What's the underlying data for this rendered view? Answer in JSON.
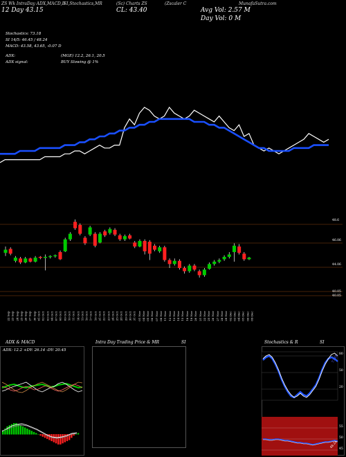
{
  "header": {
    "top_line": "ZS Wk IntraDay ADX,MACD,B  SI,Stochastics,MR  (Sc) Charts ZS  (Zscaler C)  MunafaSutra.com",
    "top_line_left": "ZS Wk IntraDay ADX,MACD,B",
    "top_line_mid1": "SI,Stochastics,MR",
    "top_line_mid2": "(Sc) Charts ZS",
    "top_line_right": "(Zscaler C",
    "top_line_far": "MunafaSutra.com",
    "date_line": "12 Day 43.15",
    "close_label": "CL: 43.40",
    "avg_vol": "Avg Vol: 2.57  M",
    "day_vol": "Day Vol: 0   M"
  },
  "indicators": {
    "stochastics": "Stochastics: 73.18",
    "si": "SI 14/5: 46.45 / 48.24",
    "macd": "MACD: 43.58, 43.65, -0.07 D",
    "adx": "ADX:",
    "adx_values": "(MGE) 12.2, 26.1, 20.5",
    "adx_signal": "ADX  signal:",
    "buy_signal": "BUY Slowing @ 1%"
  },
  "price_levels": [
    "48.6",
    "46.06",
    "44.06",
    "40.05",
    "40.05"
  ],
  "x_dates": [
    "22 Sep",
    "23 Sep",
    "24 Sep",
    "25 Sep",
    "26 Sep",
    "27 Sep",
    "30 Sep",
    "01 Oct",
    "02 Oct",
    "03 Oct",
    "04 Oct",
    "07 Oct",
    "08 Oct",
    "09 Oct",
    "10 Oct",
    "11 Oct",
    "14 Oct",
    "15 Oct",
    "16 Oct",
    "17 Oct",
    "18 Oct",
    "21 Oct",
    "22 Oct",
    "23 Oct",
    "24 Oct",
    "25 Oct",
    "28 Oct",
    "29 Oct",
    "30 Oct",
    "31 Oct",
    "01 Nov",
    "04 Nov",
    "05 Nov",
    "06 Nov",
    "07 Nov",
    "08 Nov",
    "11 Nov",
    "12 Nov",
    "13 Nov",
    "14 Nov",
    "15 Nov",
    "18 Nov",
    "19 Nov",
    "20 Nov",
    "21 Nov",
    "22 Nov",
    "25 Nov",
    "26 Nov",
    "27 Nov",
    "28 Nov",
    "29 Nov",
    "02 Dec",
    "03 Dec",
    "04 Dec",
    "05 Dec",
    "06 Dec",
    "09 Dec"
  ],
  "candles": [
    {
      "o": 44.1,
      "c": 44.5,
      "h": 44.9,
      "l": 43.7,
      "up": true
    },
    {
      "o": 44.6,
      "c": 44.0,
      "h": 44.8,
      "l": 43.8,
      "up": false
    },
    {
      "o": 43.1,
      "c": 43.5,
      "h": 43.7,
      "l": 42.9,
      "up": true
    },
    {
      "o": 43.4,
      "c": 42.9,
      "h": 43.6,
      "l": 42.7,
      "up": false
    },
    {
      "o": 42.9,
      "c": 43.4,
      "h": 43.6,
      "l": 42.8,
      "up": true
    },
    {
      "o": 43.4,
      "c": 43.0,
      "h": 43.5,
      "l": 42.9,
      "up": false
    },
    {
      "o": 43.0,
      "c": 43.5,
      "h": 43.7,
      "l": 42.9,
      "up": true
    },
    {
      "o": 43.6,
      "c": 43.5,
      "h": 43.7,
      "l": 43.3,
      "up": false
    },
    {
      "o": 43.5,
      "c": 43.6,
      "h": 43.9,
      "l": 41.9,
      "up": true
    },
    {
      "o": 43.6,
      "c": 43.7,
      "h": 43.8,
      "l": 43.4,
      "up": true
    },
    {
      "o": 43.7,
      "c": 43.8,
      "h": 43.9,
      "l": 43.5,
      "up": true
    },
    {
      "o": 44.2,
      "c": 43.3,
      "h": 44.4,
      "l": 43.2,
      "up": false
    },
    {
      "o": 44.3,
      "c": 45.8,
      "h": 46.0,
      "l": 44.2,
      "up": true
    },
    {
      "o": 45.8,
      "c": 46.5,
      "h": 46.7,
      "l": 45.6,
      "up": true
    },
    {
      "o": 48.0,
      "c": 47.2,
      "h": 48.3,
      "l": 47.0,
      "up": false
    },
    {
      "o": 47.6,
      "c": 46.5,
      "h": 47.8,
      "l": 46.3,
      "up": false
    },
    {
      "o": 46.0,
      "c": 45.3,
      "h": 46.2,
      "l": 45.1,
      "up": false
    },
    {
      "o": 46.4,
      "c": 47.3,
      "h": 47.5,
      "l": 46.2,
      "up": true
    },
    {
      "o": 46.5,
      "c": 45.0,
      "h": 46.7,
      "l": 44.8,
      "up": false
    },
    {
      "o": 45.4,
      "c": 46.5,
      "h": 46.7,
      "l": 45.3,
      "up": true
    },
    {
      "o": 46.8,
      "c": 46.3,
      "h": 47.0,
      "l": 46.1,
      "up": false
    },
    {
      "o": 46.6,
      "c": 47.1,
      "h": 47.3,
      "l": 46.4,
      "up": true
    },
    {
      "o": 47.0,
      "c": 46.4,
      "h": 47.2,
      "l": 46.2,
      "up": false
    },
    {
      "o": 46.3,
      "c": 45.8,
      "h": 46.5,
      "l": 45.6,
      "up": false
    },
    {
      "o": 45.8,
      "c": 46.2,
      "h": 46.4,
      "l": 45.6,
      "up": true
    },
    {
      "o": 46.3,
      "c": 45.9,
      "h": 46.5,
      "l": 45.8,
      "up": false
    },
    {
      "o": 45.4,
      "c": 44.9,
      "h": 45.6,
      "l": 44.7,
      "up": false
    },
    {
      "o": 44.9,
      "c": 45.6,
      "h": 45.8,
      "l": 44.8,
      "up": true
    },
    {
      "o": 45.6,
      "c": 44.3,
      "h": 45.8,
      "l": 43.9,
      "up": false
    },
    {
      "o": 45.5,
      "c": 44.0,
      "h": 45.7,
      "l": 43.2,
      "up": false
    },
    {
      "o": 45.0,
      "c": 44.5,
      "h": 45.2,
      "l": 44.3,
      "up": false
    },
    {
      "o": 44.3,
      "c": 44.8,
      "h": 45.0,
      "l": 44.1,
      "up": true
    },
    {
      "o": 44.8,
      "c": 43.2,
      "h": 45.0,
      "l": 43.0,
      "up": false
    },
    {
      "o": 43.2,
      "c": 42.7,
      "h": 43.4,
      "l": 42.2,
      "up": false
    },
    {
      "o": 42.7,
      "c": 43.1,
      "h": 43.4,
      "l": 42.5,
      "up": true
    },
    {
      "o": 43.1,
      "c": 42.2,
      "h": 43.3,
      "l": 42.0,
      "up": false
    },
    {
      "o": 42.2,
      "c": 41.8,
      "h": 42.4,
      "l": 41.5,
      "up": false
    },
    {
      "o": 41.8,
      "c": 42.5,
      "h": 42.7,
      "l": 41.6,
      "up": true
    },
    {
      "o": 42.5,
      "c": 42.0,
      "h": 42.7,
      "l": 41.8,
      "up": false
    },
    {
      "o": 41.8,
      "c": 41.3,
      "h": 42.0,
      "l": 41.0,
      "up": false
    },
    {
      "o": 41.3,
      "c": 42.0,
      "h": 42.2,
      "l": 41.1,
      "up": true
    },
    {
      "o": 42.1,
      "c": 42.7,
      "h": 42.9,
      "l": 42.0,
      "up": true
    },
    {
      "o": 42.7,
      "c": 43.0,
      "h": 43.2,
      "l": 42.5,
      "up": true
    },
    {
      "o": 43.0,
      "c": 43.2,
      "h": 43.4,
      "l": 42.8,
      "up": true
    },
    {
      "o": 43.3,
      "c": 43.6,
      "h": 43.8,
      "l": 43.1,
      "up": true
    },
    {
      "o": 43.6,
      "c": 43.9,
      "h": 44.2,
      "l": 43.4,
      "up": true
    },
    {
      "o": 44.2,
      "c": 45.0,
      "h": 45.3,
      "l": 43.0,
      "up": true
    },
    {
      "o": 44.9,
      "c": 44.1,
      "h": 45.2,
      "l": 43.9,
      "up": false
    },
    {
      "o": 44.0,
      "c": 43.3,
      "h": 44.2,
      "l": 43.1,
      "up": false
    },
    {
      "o": 43.3,
      "c": 43.5,
      "h": 43.6,
      "l": 43.2,
      "up": true
    }
  ],
  "price_line": [
    36,
    37,
    37,
    37,
    37,
    37,
    37,
    37,
    37,
    38,
    38,
    38,
    38,
    39,
    39,
    40,
    40,
    39,
    40,
    41,
    42,
    41,
    41,
    42,
    42,
    48,
    51,
    49,
    53,
    55,
    54,
    52,
    51,
    52,
    55,
    53,
    52,
    51,
    52,
    54,
    53,
    52,
    51,
    50,
    52,
    50,
    48,
    47,
    49,
    45,
    46,
    42,
    41,
    40,
    41,
    40,
    39,
    40,
    41,
    42,
    43,
    44,
    46,
    45,
    44,
    43,
    44
  ],
  "ma_line": [
    39,
    39,
    39,
    39,
    40,
    40,
    40,
    40,
    41,
    41,
    41,
    41,
    41,
    42,
    42,
    42,
    43,
    43,
    44,
    44,
    45,
    45,
    46,
    46,
    47,
    47,
    48,
    48,
    49,
    49,
    50,
    50,
    51,
    51,
    51,
    51,
    51,
    51,
    51,
    50,
    50,
    50,
    49,
    49,
    48,
    48,
    47,
    46,
    45,
    44,
    43,
    42,
    41,
    41,
    40,
    40,
    40,
    40,
    40,
    41,
    41,
    41,
    41,
    42,
    42,
    42,
    42
  ],
  "panels": {
    "adx_title": "ADX  & MACD",
    "adx_values": "ADX: 12.2  +DY: 26.14  -DY: 20.45",
    "intra_title": "Intra  Day Trading Price  & MR",
    "intra_si": "SI",
    "stoch_title": "Stochastics & R",
    "stoch_si": "SI",
    "stoch_ticks": [
      "80",
      "50",
      "20"
    ],
    "stoch_value": "73.18",
    "rsi_ticks": [
      "55",
      "50",
      "45"
    ],
    "rsi_value": "48.24"
  },
  "colors": {
    "up_candle": "#00cc00",
    "down_candle": "#ff2020",
    "ma_line": "#1a4fff",
    "grid": "#8b4513",
    "rsi_bg": "#a01010"
  }
}
